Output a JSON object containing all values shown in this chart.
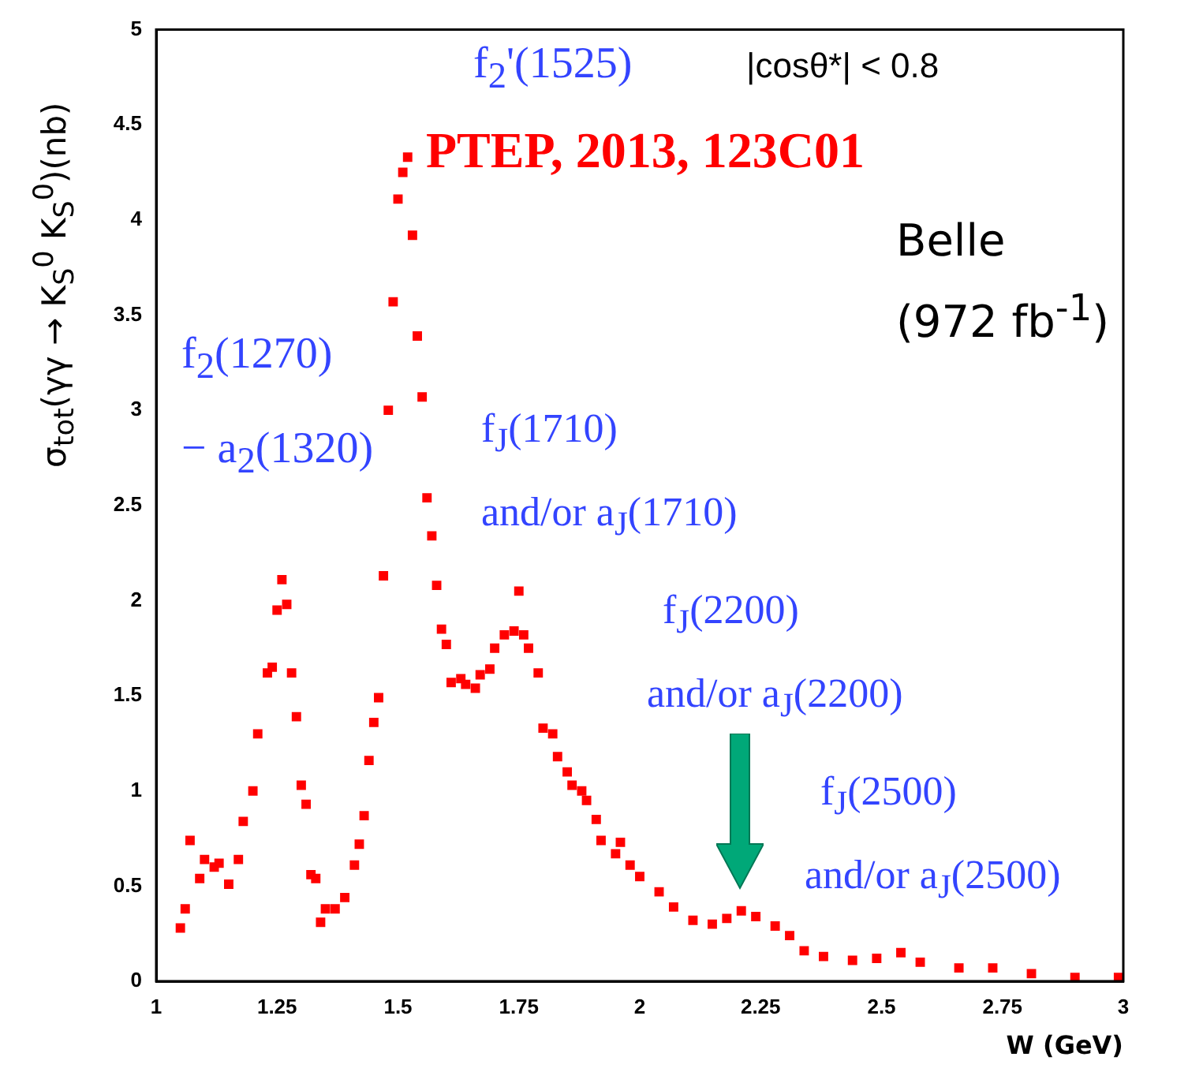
{
  "chart_data": {
    "type": "scatter",
    "xlabel": "W (GeV)",
    "ylabel": "σ$_{tot}$(γγ → K$_{S}$$^{0}$ K$_{S}$$^{0}$)(nb)",
    "xlim": [
      1,
      3
    ],
    "xticks": [
      1,
      1.25,
      1.5,
      1.75,
      2,
      2.25,
      2.5,
      2.75,
      3
    ],
    "ylim": [
      0,
      5
    ],
    "yticks": [
      0,
      0.5,
      1,
      1.5,
      2,
      2.5,
      3,
      3.5,
      4,
      4.5,
      5
    ],
    "grid": false,
    "legend": false,
    "marker": "square",
    "annotations": [
      "f$_{2}$'(1525)",
      "|cosθ*| < 0.8",
      "PTEP, 2013, 123C01",
      "Belle",
      "(972 fb$^{-1}$)",
      "f$_{2}$(1270)",
      "− a$_{2}$(1320)",
      "f$_{J}$(1710)",
      "and/or a$_{J}$(1710)",
      "f$_{J}$(2200)",
      "and/or a$_{J}$(2200)",
      "f$_{J}$(2500)",
      "and/or a$_{J}$(2500)"
    ],
    "series": [
      {
        "color": "#ff0000",
        "x": [
          1.05,
          1.06,
          1.07,
          1.09,
          1.1,
          1.12,
          1.13,
          1.15,
          1.17,
          1.18,
          1.2,
          1.21,
          1.23,
          1.24,
          1.25,
          1.26,
          1.27,
          1.28,
          1.29,
          1.3,
          1.31,
          1.32,
          1.33,
          1.34,
          1.35,
          1.37,
          1.39,
          1.41,
          1.42,
          1.43,
          1.44,
          1.45,
          1.46,
          1.47,
          1.48,
          1.49,
          1.5,
          1.51,
          1.52,
          1.53,
          1.54,
          1.55,
          1.56,
          1.57,
          1.58,
          1.59,
          1.6,
          1.61,
          1.63,
          1.64,
          1.66,
          1.67,
          1.69,
          1.7,
          1.72,
          1.74,
          1.75,
          1.76,
          1.77,
          1.79,
          1.8,
          1.82,
          1.83,
          1.85,
          1.86,
          1.88,
          1.89,
          1.91,
          1.92,
          1.95,
          1.96,
          1.98,
          2,
          2.04,
          2.07,
          2.11,
          2.15,
          2.18,
          2.21,
          2.24,
          2.28,
          2.31,
          2.34,
          2.38,
          2.44,
          2.49,
          2.54,
          2.58,
          2.66,
          2.73,
          2.81,
          2.9,
          2.99
        ],
        "values": [
          0.28,
          0.38,
          0.74,
          0.54,
          0.64,
          0.6,
          0.62,
          0.51,
          0.64,
          0.84,
          1.0,
          1.3,
          1.62,
          1.65,
          1.95,
          2.11,
          1.98,
          1.62,
          1.39,
          1.03,
          0.93,
          0.56,
          0.54,
          0.31,
          0.38,
          0.38,
          0.44,
          0.61,
          0.72,
          0.87,
          1.16,
          1.36,
          1.49,
          2.13,
          3.0,
          3.57,
          4.11,
          4.25,
          4.33,
          3.92,
          3.39,
          3.07,
          2.54,
          2.34,
          2.08,
          1.85,
          1.77,
          1.57,
          1.59,
          1.56,
          1.54,
          1.61,
          1.64,
          1.75,
          1.82,
          1.84,
          2.05,
          1.82,
          1.75,
          1.62,
          1.33,
          1.3,
          1.18,
          1.1,
          1.03,
          1.0,
          0.95,
          0.85,
          0.74,
          0.67,
          0.73,
          0.61,
          0.55,
          0.47,
          0.39,
          0.32,
          0.3,
          0.33,
          0.37,
          0.34,
          0.29,
          0.24,
          0.16,
          0.13,
          0.11,
          0.12,
          0.15,
          0.1,
          0.07,
          0.07,
          0.04,
          0.02,
          0.02
        ]
      }
    ]
  }
}
